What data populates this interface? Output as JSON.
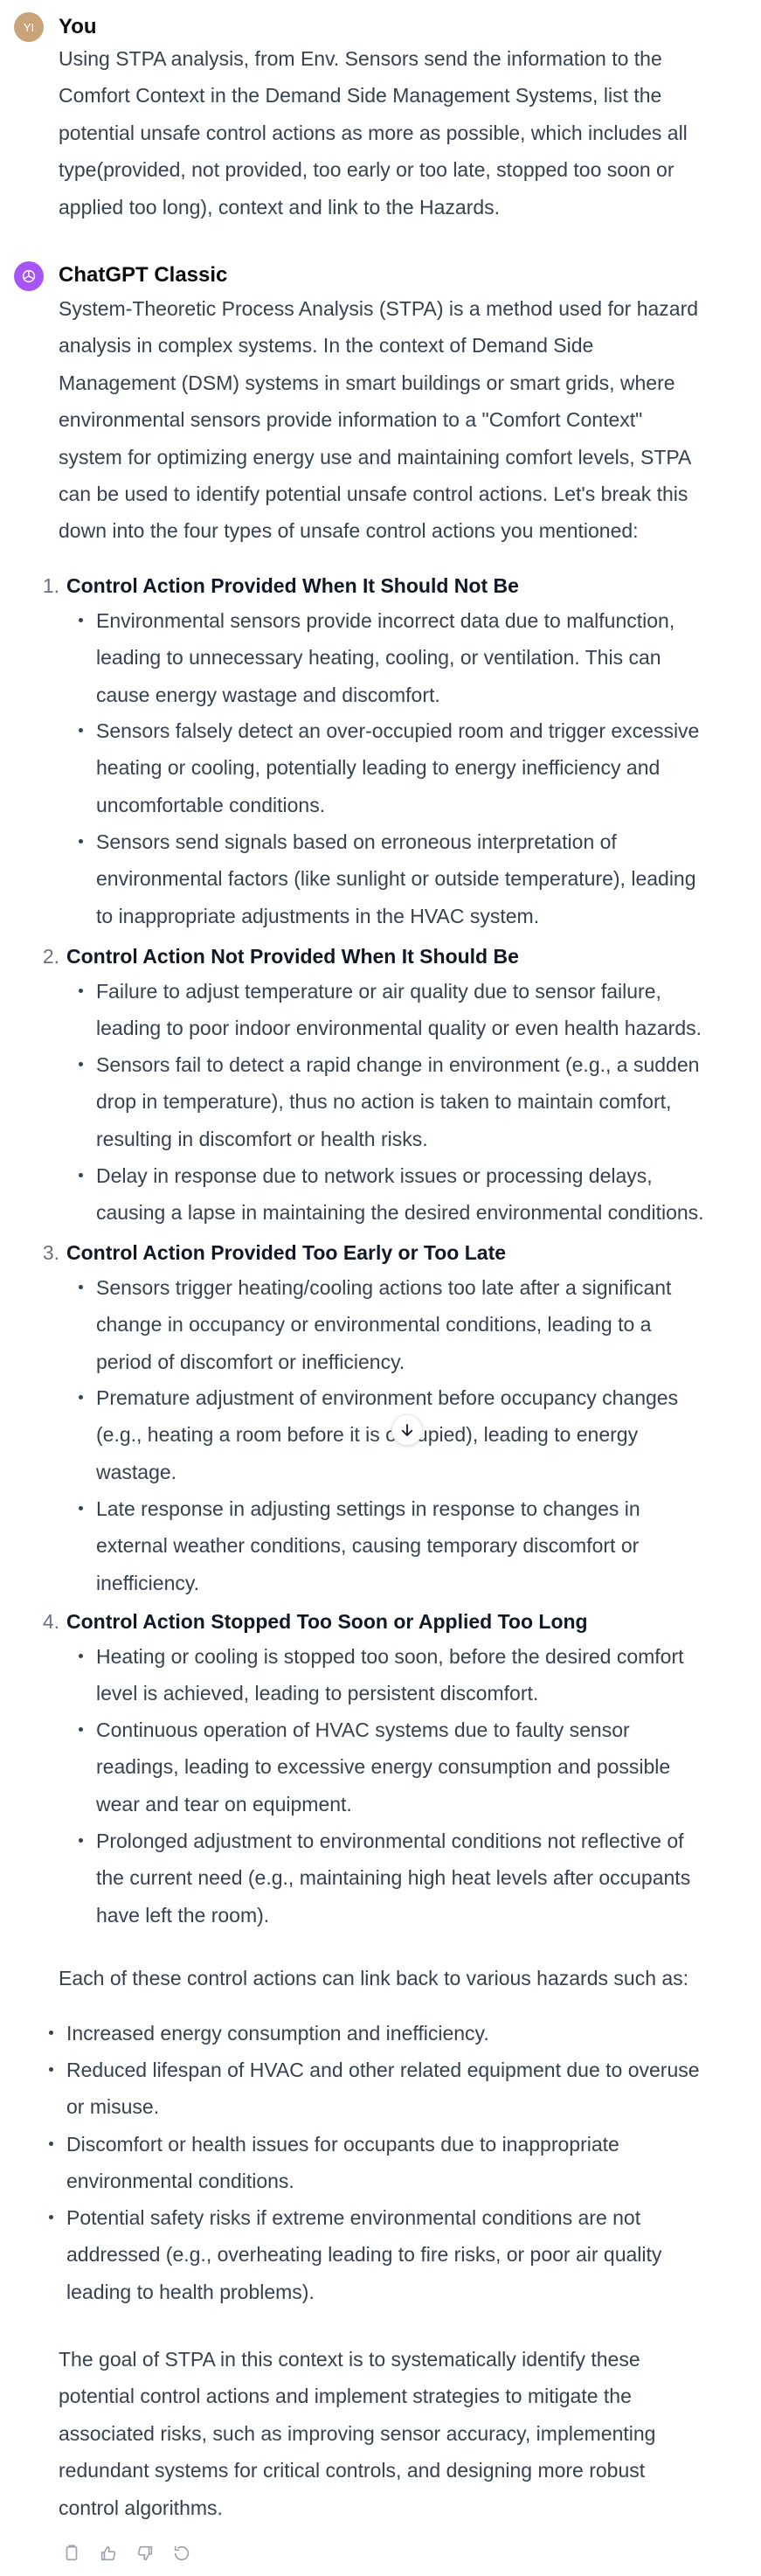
{
  "user": {
    "avatar_initials": "YI",
    "name": "You",
    "message_lines": [
      "Using STPA analysis, from Env. Sensors send the information to the",
      "Comfort Context in the Demand Side Management Systems, list the",
      "potential unsafe control actions as more as possible, which includes all",
      "type(provided, not provided, too early or too late, stopped too soon or",
      "applied too long), context and link to the Hazards."
    ]
  },
  "assistant": {
    "name": "ChatGPT Classic",
    "intro_lines": [
      "System-Theoretic Process Analysis (STPA) is a method used for hazard",
      "analysis in complex systems. In the context of Demand Side",
      "Management (DSM) systems in smart buildings or smart grids, where",
      "environmental sensors provide information to a \"Comfort Context\"",
      "system for optimizing energy use and maintaining comfort levels, STPA",
      "can be used to identify potential unsafe control actions. Let's break this",
      "down into the four types of unsafe control actions you mentioned:"
    ],
    "sections": [
      {
        "number": "1.",
        "title": "Control Action Provided When It Should Not Be",
        "bullets": [
          [
            "Environmental sensors provide incorrect data due to malfunction,",
            "leading to unnecessary heating, cooling, or ventilation. This can",
            "cause energy wastage and discomfort."
          ],
          [
            "Sensors falsely detect an over-occupied room and trigger excessive",
            "heating or cooling, potentially leading to energy inefficiency and",
            "uncomfortable conditions."
          ],
          [
            "Sensors send signals based on erroneous interpretation of",
            "environmental factors (like sunlight or outside temperature), leading",
            "to inappropriate adjustments in the HVAC system."
          ]
        ]
      },
      {
        "number": "2.",
        "title": "Control Action Not Provided When It Should Be",
        "bullets": [
          [
            "Failure to adjust temperature or air quality due to sensor failure,",
            "leading to poor indoor environmental quality or even health hazards."
          ],
          [
            "Sensors fail to detect a rapid change in environment (e.g., a sudden",
            "drop in temperature), thus no action is taken to maintain comfort,",
            "resulting in discomfort or health risks."
          ],
          [
            "Delay in response due to network issues or processing delays,",
            "causing a lapse in maintaining the desired environmental conditions."
          ]
        ]
      },
      {
        "number": "3.",
        "title": "Control Action Provided Too Early or Too Late",
        "bullets": [
          [
            "Sensors trigger heating/cooling actions too late after a significant",
            "change in occupancy or environmental conditions, leading to a",
            "period of discomfort or inefficiency."
          ],
          [
            "Premature adjustment of environment before occupancy changes",
            "(e.g., heating a room before it is occupied), leading to energy",
            "wastage."
          ],
          [
            "Late response in adjusting settings in response to changes in",
            "external weather conditions, causing temporary discomfort or",
            "inefficiency."
          ]
        ]
      },
      {
        "number": "4.",
        "title": "Control Action Stopped Too Soon or Applied Too Long",
        "bullets": [
          [
            "Heating or cooling is stopped too soon, before the desired comfort",
            "level is achieved, leading to persistent discomfort."
          ],
          [
            "Continuous operation of HVAC systems due to faulty sensor",
            "readings, leading to excessive energy consumption and possible",
            "wear and tear on equipment."
          ],
          [
            "Prolonged adjustment to environmental conditions not reflective of",
            "the current need (e.g., maintaining high heat levels after occupants",
            "have left the room)."
          ]
        ]
      }
    ],
    "hazards_intro": "Each of these control actions can link back to various hazards such as:",
    "hazards": [
      [
        "Increased energy consumption and inefficiency."
      ],
      [
        "Reduced lifespan of HVAC and other related equipment due to overuse",
        "or misuse."
      ],
      [
        "Discomfort or health issues for occupants due to inappropriate",
        "environmental conditions."
      ],
      [
        "Potential safety risks if extreme environmental conditions are not",
        "addressed (e.g., overheating leading to fire risks, or poor air quality",
        "leading to health problems)."
      ]
    ],
    "conclusion_lines": [
      "The goal of STPA in this context is to systematically identify these",
      "potential control actions and implement strategies to mitigate the",
      "associated risks, such as improving sensor accuracy, implementing",
      "redundant systems for critical controls, and designing more robust",
      "control algorithms."
    ]
  },
  "actions": {
    "icons": [
      "copy-icon",
      "thumbs-up-icon",
      "thumbs-down-icon",
      "regenerate-icon"
    ]
  },
  "colors": {
    "user_avatar": "#c9a47b",
    "assistant_avatar": "#a855f7",
    "text": "#374151"
  }
}
